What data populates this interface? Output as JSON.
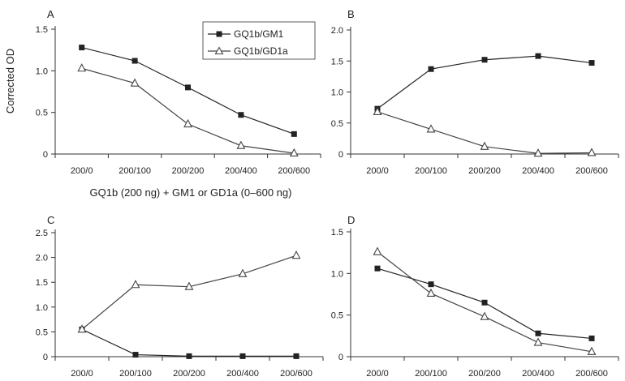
{
  "figure": {
    "ylabel": "Corrected OD",
    "xlabel": "GQ1b (200 ng) + GM1 or GD1a (0–600 ng)",
    "legend": [
      {
        "label": "GQ1b/GM1",
        "marker": "filled-square",
        "color": "#222222"
      },
      {
        "label": "GQ1b/GD1a",
        "marker": "open-triangle",
        "color": "#444444"
      }
    ],
    "colors": {
      "gm1": "#222222",
      "gd1a": "#444444",
      "axis": "#333333"
    }
  },
  "chart_data": [
    {
      "panel": "A",
      "type": "line",
      "categories": [
        "200/0",
        "200/100",
        "200/200",
        "200/400",
        "200/600"
      ],
      "ylim": [
        0,
        1.5
      ],
      "yticks": [
        "0",
        "0.5",
        "1.0",
        "1.5"
      ],
      "series": [
        {
          "name": "GQ1b/GM1",
          "values": [
            1.28,
            1.12,
            0.8,
            0.47,
            0.24
          ]
        },
        {
          "name": "GQ1b/GD1a",
          "values": [
            1.03,
            0.85,
            0.36,
            0.1,
            0.01
          ]
        }
      ]
    },
    {
      "panel": "B",
      "type": "line",
      "categories": [
        "200/0",
        "200/100",
        "200/200",
        "200/400",
        "200/600"
      ],
      "ylim": [
        0,
        2.0
      ],
      "yticks": [
        "0",
        "0.5",
        "1.0",
        "1.5",
        "2.0"
      ],
      "series": [
        {
          "name": "GQ1b/GM1",
          "values": [
            0.73,
            1.37,
            1.52,
            1.58,
            1.47
          ]
        },
        {
          "name": "GQ1b/GD1a",
          "values": [
            0.68,
            0.4,
            0.12,
            0.01,
            0.02
          ]
        }
      ]
    },
    {
      "panel": "C",
      "type": "line",
      "categories": [
        "200/0",
        "200/100",
        "200/200",
        "200/400",
        "200/600"
      ],
      "ylim": [
        0,
        2.5
      ],
      "yticks": [
        "0",
        "0.5",
        "1.0",
        "1.5",
        "2.0",
        "2.5"
      ],
      "series": [
        {
          "name": "GQ1b/GM1",
          "values": [
            0.55,
            0.04,
            0.01,
            0.01,
            0.01
          ]
        },
        {
          "name": "GQ1b/GD1a",
          "values": [
            0.55,
            1.45,
            1.41,
            1.67,
            2.04
          ]
        }
      ]
    },
    {
      "panel": "D",
      "type": "line",
      "categories": [
        "200/0",
        "200/100",
        "200/200",
        "200/400",
        "200/600"
      ],
      "ylim": [
        0,
        1.5
      ],
      "yticks": [
        "0",
        "0.5",
        "1.0",
        "1.5"
      ],
      "series": [
        {
          "name": "GQ1b/GM1",
          "values": [
            1.06,
            0.87,
            0.65,
            0.28,
            0.22
          ]
        },
        {
          "name": "GQ1b/GD1a",
          "values": [
            1.26,
            0.76,
            0.48,
            0.17,
            0.06
          ]
        }
      ]
    }
  ]
}
